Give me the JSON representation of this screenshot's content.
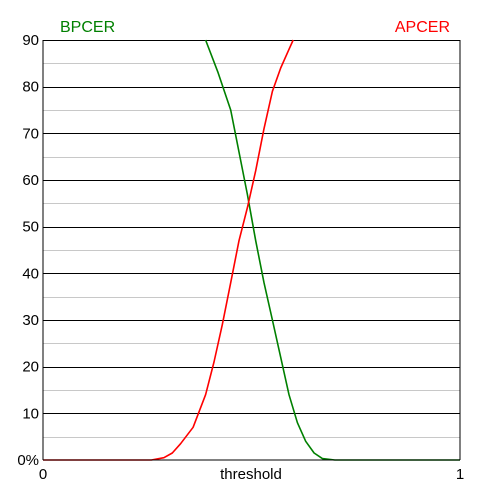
{
  "chart_data": {
    "type": "line",
    "title": "",
    "xlabel": "threshold",
    "ylabel": "",
    "xlim": [
      0,
      1
    ],
    "ylim": [
      0,
      90
    ],
    "y_ticks": [
      0,
      10,
      20,
      30,
      40,
      50,
      60,
      70,
      80,
      90
    ],
    "y_tick_labels": [
      "0%",
      "10",
      "20",
      "30",
      "40",
      "50",
      "60",
      "70",
      "80",
      "90"
    ],
    "x_ticks": [
      0,
      1
    ],
    "x_tick_labels": [
      "0",
      "1"
    ],
    "grid": {
      "major_y": true,
      "minor_y": true,
      "x": false
    },
    "legend_placement": "series names at top-left and top-right",
    "series": [
      {
        "name": "BPCER",
        "color": "#008000",
        "points": [
          [
            0.39,
            90
          ],
          [
            0.42,
            83
          ],
          [
            0.45,
            75
          ],
          [
            0.47,
            66
          ],
          [
            0.49,
            57
          ],
          [
            0.5,
            52
          ],
          [
            0.51,
            47
          ],
          [
            0.53,
            38
          ],
          [
            0.55,
            30
          ],
          [
            0.57,
            22
          ],
          [
            0.59,
            14
          ],
          [
            0.61,
            8
          ],
          [
            0.63,
            4
          ],
          [
            0.65,
            1.5
          ],
          [
            0.67,
            0.3
          ],
          [
            0.7,
            0
          ],
          [
            1.0,
            0
          ]
        ]
      },
      {
        "name": "APCER",
        "color": "#ff0000",
        "points": [
          [
            0.0,
            0
          ],
          [
            0.26,
            0
          ],
          [
            0.29,
            0.5
          ],
          [
            0.31,
            1.5
          ],
          [
            0.33,
            3.5
          ],
          [
            0.36,
            7
          ],
          [
            0.39,
            14
          ],
          [
            0.41,
            21
          ],
          [
            0.43,
            29
          ],
          [
            0.45,
            38
          ],
          [
            0.47,
            47
          ],
          [
            0.49,
            54
          ],
          [
            0.51,
            62
          ],
          [
            0.53,
            71
          ],
          [
            0.55,
            79
          ],
          [
            0.57,
            84
          ],
          [
            0.59,
            88
          ],
          [
            0.6,
            90
          ]
        ]
      }
    ]
  }
}
